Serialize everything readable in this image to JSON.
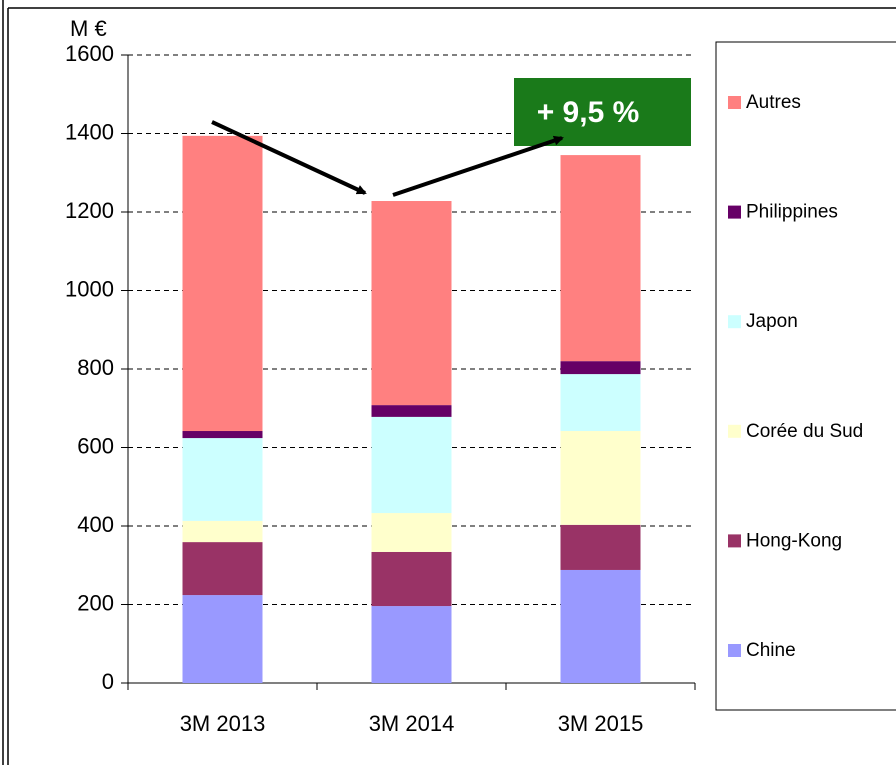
{
  "chart_data": {
    "type": "stacked_bar",
    "y_axis_label": "M €",
    "annotation": "+ 9,5 %",
    "categories": [
      "3M 2013",
      "3M 2014",
      "3M 2015"
    ],
    "series": [
      {
        "name": "Chine",
        "color": "#9999ff",
        "values": [
          224,
          196,
          288
        ]
      },
      {
        "name": "Hong-Kong",
        "color": "#993366",
        "values": [
          135,
          138,
          115
        ]
      },
      {
        "name": "Corée du Sud",
        "color": "#ffffcc",
        "values": [
          54,
          99,
          239
        ]
      },
      {
        "name": "Japon",
        "color": "#ccffff",
        "values": [
          211,
          245,
          145
        ]
      },
      {
        "name": "Philippines",
        "color": "#660066",
        "values": [
          18,
          30,
          33
        ]
      },
      {
        "name": "Autres",
        "color": "#ff8080",
        "values": [
          752,
          520,
          525
        ]
      }
    ],
    "ylim": [
      0,
      1600
    ],
    "yticks": [
      0,
      200,
      400,
      600,
      800,
      1000,
      1200,
      1400,
      1600
    ],
    "grid": true,
    "legend": "right"
  }
}
